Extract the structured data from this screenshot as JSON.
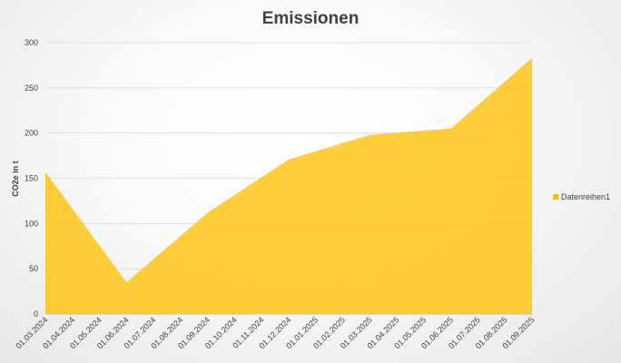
{
  "chart_data": {
    "type": "area",
    "title": "Emissionen",
    "xlabel": "",
    "ylabel": "CO2e in t",
    "ylim": [
      0,
      300
    ],
    "yticks": [
      0,
      50,
      100,
      150,
      200,
      250,
      300
    ],
    "x": [
      "01.03.2024",
      "01.04.2024",
      "01.05.2024",
      "01.06.2024",
      "01.07.2024",
      "01.08.2024",
      "01.09.2024",
      "01.10.2024",
      "01.11.2024",
      "01.12.2024",
      "01.01.2025",
      "01.02.2025",
      "01.03.2025",
      "01.04.2025",
      "01.05.2025",
      "01.06.2025",
      "01.07.2025",
      "01.08.2025",
      "01.09.2025"
    ],
    "series": [
      {
        "name": "Datenreihen1",
        "color": "#FFC000",
        "points": [
          {
            "x": "01.03.2024",
            "y": 157
          },
          {
            "x": "01.06.2024",
            "y": 35
          },
          {
            "x": "01.09.2024",
            "y": 112
          },
          {
            "x": "01.12.2024",
            "y": 171
          },
          {
            "x": "01.03.2025",
            "y": 198
          },
          {
            "x": "01.06.2025",
            "y": 205
          },
          {
            "x": "01.09.2025",
            "y": 283
          }
        ]
      }
    ],
    "grid": true,
    "legend": "right"
  }
}
